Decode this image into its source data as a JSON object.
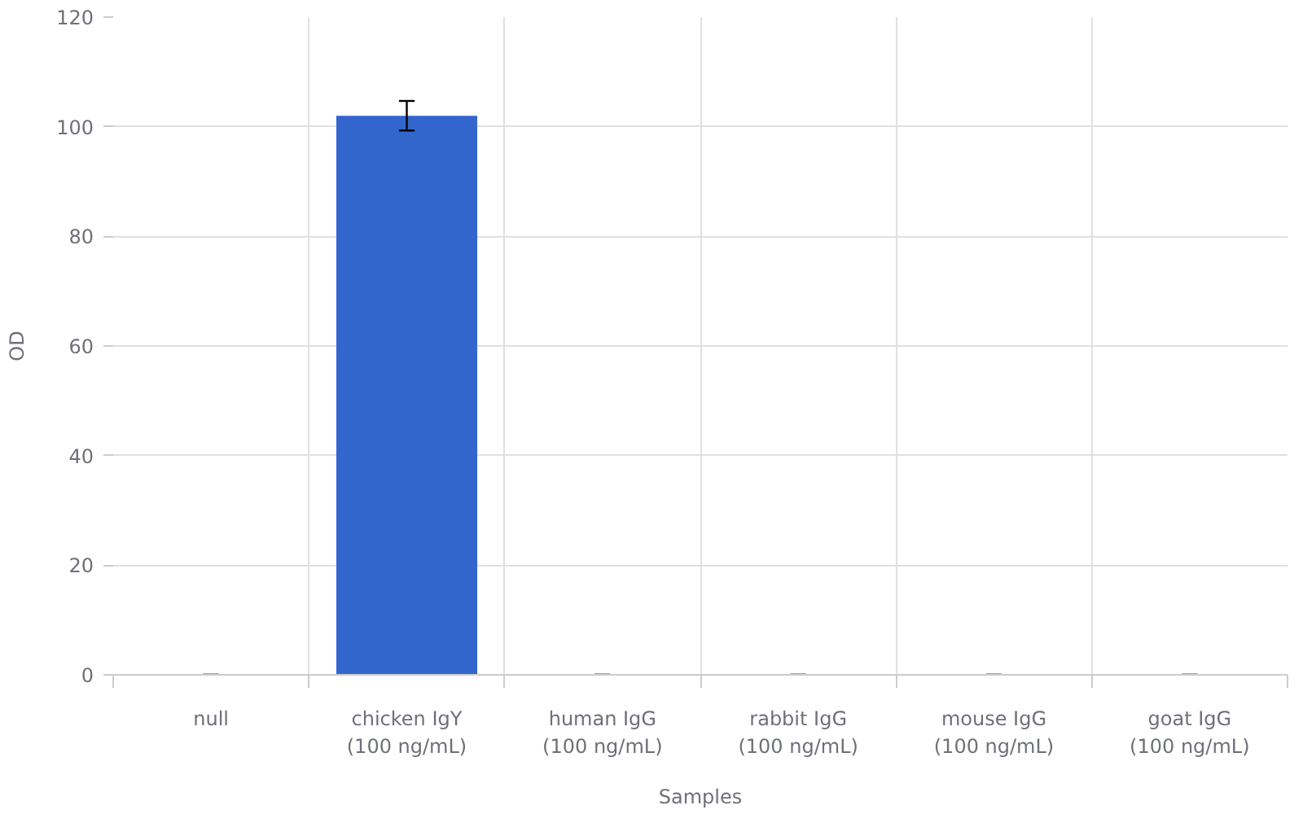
{
  "chart_data": {
    "type": "bar",
    "xlabel": "Samples",
    "ylabel": "OD",
    "categories": [
      "null",
      "chicken IgY (100 ng/mL)",
      "human IgG (100 ng/mL)",
      "rabbit IgG (100 ng/mL)",
      "mouse IgG (100 ng/mL)",
      "goat IgG (100 ng/mL)"
    ],
    "values": [
      0,
      102,
      0,
      0,
      0,
      0
    ],
    "errors": [
      0,
      2.7,
      0,
      0,
      0,
      0
    ],
    "color": "#3366cc",
    "ylim": [
      0,
      120
    ],
    "yticks": [
      0,
      20,
      40,
      60,
      80,
      100,
      120
    ],
    "grid": true
  }
}
